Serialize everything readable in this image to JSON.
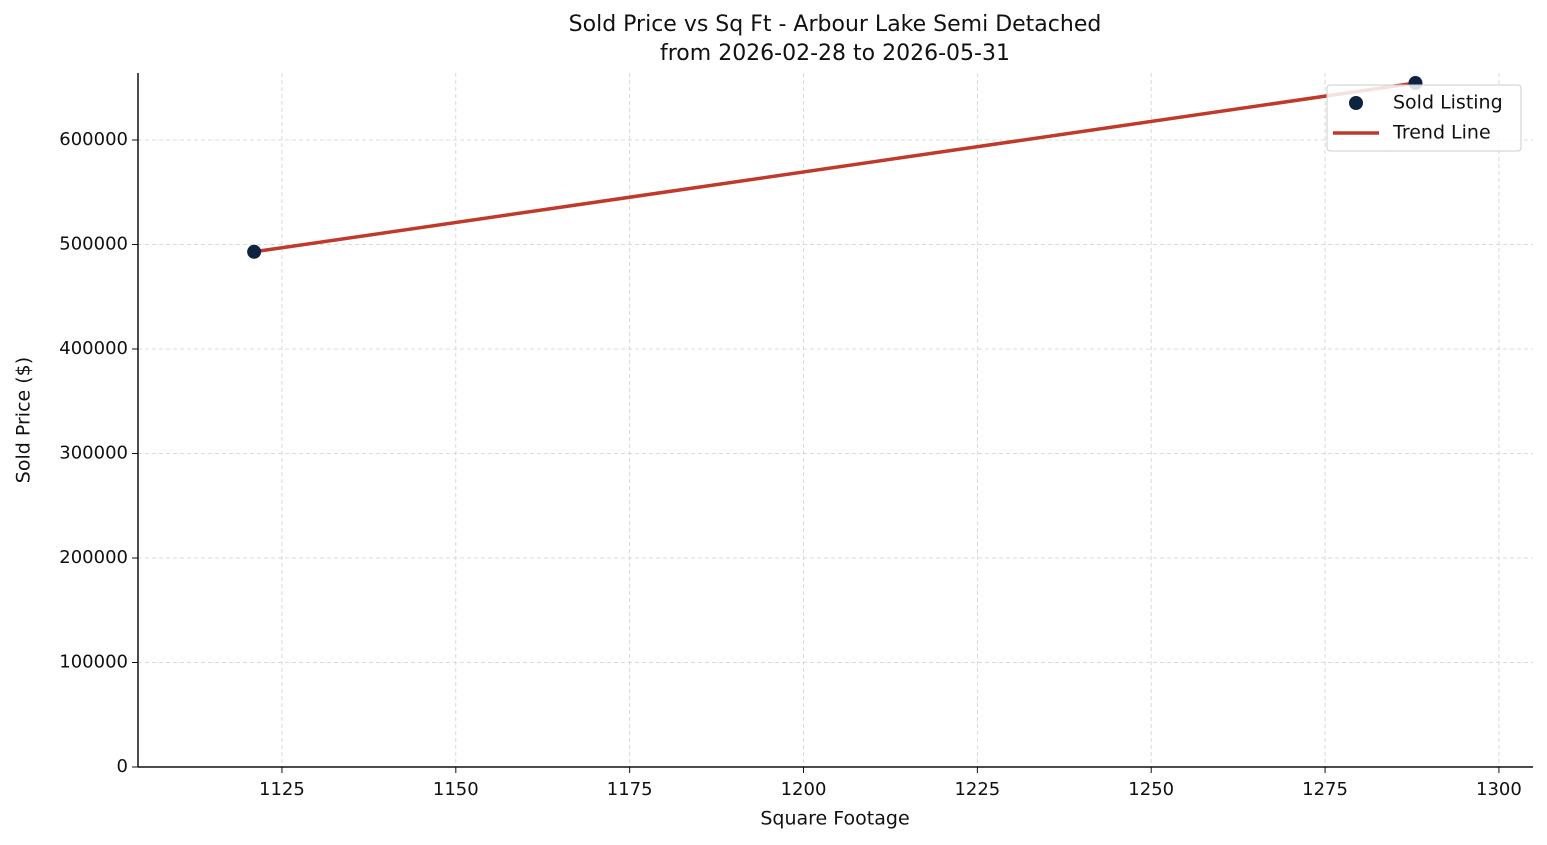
{
  "chart_data": {
    "type": "scatter",
    "title": "Sold Price vs Sq Ft - Arbour Lake Semi Detached",
    "subtitle": "from 2026-02-28 to 2026-05-31",
    "x_label": "Square Footage",
    "y_label": "Sold Price ($)",
    "xlim": [
      1104.3,
      1304.9
    ],
    "xticks": [
      1125,
      1150,
      1175,
      1200,
      1225,
      1250,
      1275,
      1300
    ],
    "ylim": [
      0,
      664100
    ],
    "yticks": [
      0,
      100000,
      200000,
      300000,
      400000,
      500000,
      600000
    ],
    "grid": true,
    "legend": "upper right",
    "series": [
      {
        "name": "Sold Listing",
        "type": "scatter",
        "color": "#0d2340",
        "x": [
          1121,
          1288
        ],
        "values": [
          493000,
          654500
        ]
      },
      {
        "name": "Trend Line",
        "type": "line",
        "color": "#c0392b",
        "x": [
          1121,
          1288
        ],
        "values": [
          493000,
          654500
        ]
      }
    ]
  }
}
